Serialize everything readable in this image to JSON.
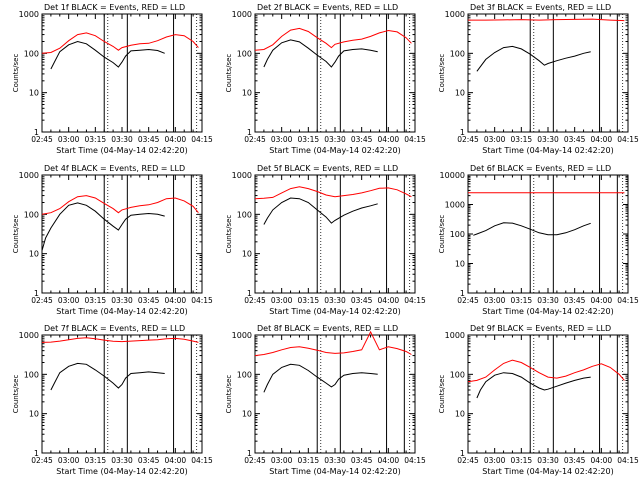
{
  "colors": {
    "events": "#000000",
    "lld": "#ff0000",
    "axis": "#000000"
  },
  "chart_data": [
    {
      "type": "line",
      "title": "Det 1f BLACK = Events, RED = LLD",
      "xlabel": "Start Time (04-May-14 02:42:20)",
      "ylabel": "Counts/sec",
      "yscale": "log",
      "ylim": [
        1,
        1000
      ],
      "x_ticks": [
        "02:45",
        "03:00",
        "03:15",
        "03:30",
        "03:45",
        "04:00",
        "04:15"
      ],
      "y_ticks": [
        "1",
        "10",
        "100",
        "1000"
      ],
      "xlim_min": [
        165,
        255
      ],
      "marker_lines_min": [
        35,
        48,
        74,
        84
      ],
      "series": [
        {
          "x_min": [
            170,
            172,
            175,
            180,
            185,
            190,
            195,
            200,
            205,
            208,
            210,
            212,
            215,
            220,
            225,
            230,
            234
          ],
          "values": [
            40,
            60,
            110,
            165,
            200,
            175,
            120,
            80,
            58,
            45,
            60,
            85,
            115,
            120,
            125,
            118,
            100
          ]
        },
        {
          "x_min": [
            165,
            170,
            175,
            180,
            185,
            190,
            195,
            200,
            205,
            208,
            210,
            215,
            220,
            225,
            230,
            235,
            240,
            245,
            250,
            253
          ],
          "values": [
            100,
            105,
            135,
            210,
            300,
            330,
            280,
            200,
            150,
            120,
            140,
            160,
            175,
            180,
            210,
            260,
            300,
            280,
            200,
            140
          ]
        }
      ]
    },
    {
      "type": "line",
      "title": "Det 2f BLACK = Events, RED = LLD",
      "xlabel": "Start Time (04-May-14 02:42:20)",
      "ylabel": "Counts/sec",
      "yscale": "log",
      "ylim": [
        1,
        1000
      ],
      "x_ticks": [
        "02:45",
        "03:00",
        "03:15",
        "03:30",
        "03:45",
        "04:00",
        "04:15"
      ],
      "y_ticks": [
        "1",
        "10",
        "100",
        "1000"
      ],
      "xlim_min": [
        165,
        255
      ],
      "marker_lines_min": [
        35,
        48,
        74,
        84
      ],
      "series": [
        {
          "x_min": [
            170,
            172,
            175,
            180,
            185,
            190,
            195,
            200,
            205,
            208,
            210,
            212,
            215,
            220,
            225,
            230,
            234
          ],
          "values": [
            45,
            70,
            120,
            185,
            220,
            195,
            135,
            90,
            62,
            45,
            60,
            85,
            115,
            125,
            130,
            120,
            110
          ]
        },
        {
          "x_min": [
            165,
            170,
            175,
            180,
            185,
            190,
            195,
            200,
            205,
            208,
            210,
            215,
            220,
            225,
            230,
            235,
            240,
            245,
            250,
            253
          ],
          "values": [
            120,
            125,
            165,
            270,
            390,
            430,
            360,
            250,
            180,
            140,
            170,
            195,
            215,
            230,
            270,
            330,
            380,
            350,
            250,
            180
          ]
        }
      ]
    },
    {
      "type": "line",
      "title": "Det 3f BLACK = Events, RED = LLD",
      "xlabel": "Start Time (04-May-14 02:42:20)",
      "ylabel": "Counts/sec",
      "yscale": "log",
      "ylim": [
        1,
        1000
      ],
      "x_ticks": [
        "02:45",
        "03:00",
        "03:15",
        "03:30",
        "03:45",
        "04:00",
        "04:15"
      ],
      "y_ticks": [
        "1",
        "10",
        "100",
        "1000"
      ],
      "xlim_min": [
        165,
        255
      ],
      "marker_lines_min": [
        35,
        48,
        74,
        84
      ],
      "series": [
        {
          "x_min": [
            170,
            175,
            180,
            185,
            190,
            195,
            200,
            205,
            208,
            210,
            215,
            220,
            225,
            230,
            234
          ],
          "values": [
            35,
            70,
            105,
            140,
            150,
            130,
            95,
            65,
            50,
            55,
            65,
            75,
            85,
            100,
            110
          ]
        },
        {
          "x_min": [
            165,
            175,
            185,
            195,
            205,
            215,
            225,
            235,
            245,
            253
          ],
          "values": [
            700,
            700,
            710,
            720,
            700,
            720,
            730,
            740,
            700,
            680
          ]
        }
      ]
    },
    {
      "type": "line",
      "title": "Det 4f BLACK = Events, RED = LLD",
      "xlabel": "Start Time (04-May-14 02:42:20)",
      "ylabel": "Counts/sec",
      "yscale": "log",
      "ylim": [
        1,
        1000
      ],
      "x_ticks": [
        "02:45",
        "03:00",
        "03:15",
        "03:30",
        "03:45",
        "04:00",
        "04:15"
      ],
      "y_ticks": [
        "1",
        "10",
        "100",
        "1000"
      ],
      "xlim_min": [
        165,
        255
      ],
      "marker_lines_min": [
        35,
        48,
        74,
        84
      ],
      "series": [
        {
          "x_min": [
            165,
            167,
            170,
            175,
            180,
            185,
            190,
            195,
            200,
            205,
            208,
            210,
            212,
            215,
            220,
            225,
            230,
            234
          ],
          "values": [
            12,
            25,
            45,
            100,
            170,
            195,
            170,
            120,
            75,
            50,
            40,
            55,
            75,
            95,
            100,
            105,
            100,
            90
          ]
        },
        {
          "x_min": [
            165,
            170,
            175,
            180,
            185,
            190,
            195,
            200,
            205,
            208,
            210,
            215,
            220,
            225,
            230,
            235,
            240,
            245,
            250,
            253
          ],
          "values": [
            100,
            110,
            140,
            210,
            280,
            300,
            260,
            190,
            140,
            110,
            130,
            150,
            165,
            175,
            200,
            250,
            260,
            220,
            160,
            110
          ]
        }
      ]
    },
    {
      "type": "line",
      "title": "Det 5f BLACK = Events, RED = LLD",
      "xlabel": "Start Time (04-May-14 02:42:20)",
      "ylabel": "Counts/sec",
      "yscale": "log",
      "ylim": [
        1,
        1000
      ],
      "x_ticks": [
        "02:45",
        "03:00",
        "03:15",
        "03:30",
        "03:45",
        "04:00",
        "04:15"
      ],
      "y_ticks": [
        "1",
        "10",
        "100",
        "1000"
      ],
      "xlim_min": [
        165,
        255
      ],
      "marker_lines_min": [
        35,
        48,
        74,
        84
      ],
      "series": [
        {
          "x_min": [
            170,
            172,
            175,
            180,
            185,
            190,
            195,
            200,
            205,
            208,
            210,
            215,
            220,
            225,
            230,
            234
          ],
          "values": [
            55,
            80,
            130,
            200,
            260,
            250,
            200,
            130,
            85,
            60,
            70,
            95,
            120,
            145,
            165,
            185
          ]
        },
        {
          "x_min": [
            165,
            170,
            175,
            180,
            185,
            190,
            195,
            200,
            205,
            210,
            215,
            220,
            225,
            230,
            235,
            240,
            245,
            250,
            253
          ],
          "values": [
            250,
            255,
            270,
            350,
            450,
            500,
            450,
            380,
            310,
            280,
            300,
            320,
            350,
            400,
            460,
            470,
            420,
            330,
            280
          ]
        }
      ]
    },
    {
      "type": "line",
      "title": "Det 6f BLACK = Events, RED = LLD",
      "xlabel": "Start Time (04-May-14 02:42:20)",
      "ylabel": "Counts/sec",
      "yscale": "log",
      "ylim": [
        1,
        10000
      ],
      "x_ticks": [
        "02:45",
        "03:00",
        "03:15",
        "03:30",
        "03:45",
        "04:00",
        "04:15"
      ],
      "y_ticks": [
        "1",
        "10",
        "100",
        "1000",
        "10000"
      ],
      "xlim_min": [
        165,
        255
      ],
      "marker_lines_min": [
        35,
        48,
        74,
        84
      ],
      "series": [
        {
          "x_min": [
            168,
            170,
            175,
            180,
            185,
            190,
            195,
            200,
            205,
            210,
            215,
            220,
            225,
            230,
            234
          ],
          "values": [
            90,
            100,
            130,
            190,
            240,
            235,
            190,
            145,
            110,
            95,
            95,
            110,
            140,
            190,
            230
          ]
        },
        {
          "x_min": [
            165,
            253
          ],
          "values": [
            2500,
            2500
          ]
        }
      ]
    },
    {
      "type": "line",
      "title": "Det 7f BLACK = Events, RED = LLD",
      "xlabel": "Start Time (04-May-14 02:42:20)",
      "ylabel": "Counts/sec",
      "yscale": "log",
      "ylim": [
        1,
        1000
      ],
      "x_ticks": [
        "02:45",
        "03:00",
        "03:15",
        "03:30",
        "03:45",
        "04:00",
        "04:15"
      ],
      "y_ticks": [
        "1",
        "10",
        "100",
        "1000"
      ],
      "xlim_min": [
        165,
        255
      ],
      "marker_lines_min": [
        35,
        48,
        74,
        84
      ],
      "series": [
        {
          "x_min": [
            170,
            172,
            175,
            180,
            185,
            190,
            195,
            200,
            205,
            208,
            210,
            212,
            215,
            220,
            225,
            230,
            234
          ],
          "values": [
            40,
            60,
            110,
            160,
            190,
            180,
            130,
            90,
            60,
            45,
            55,
            80,
            105,
            110,
            115,
            110,
            105
          ]
        },
        {
          "x_min": [
            165,
            170,
            175,
            180,
            185,
            190,
            195,
            200,
            205,
            210,
            215,
            220,
            225,
            230,
            235,
            240,
            245,
            250,
            253
          ],
          "values": [
            650,
            660,
            700,
            760,
            820,
            850,
            800,
            740,
            690,
            680,
            700,
            720,
            740,
            760,
            800,
            820,
            780,
            700,
            650
          ]
        }
      ]
    },
    {
      "type": "line",
      "title": "Det 8f BLACK = Events, RED = LLD",
      "xlabel": "Start Time (04-May-14 02:42:20)",
      "ylabel": "Counts/sec",
      "yscale": "log",
      "ylim": [
        1,
        1000
      ],
      "x_ticks": [
        "02:45",
        "03:00",
        "03:15",
        "03:30",
        "03:45",
        "04:00",
        "04:15"
      ],
      "y_ticks": [
        "1",
        "10",
        "100",
        "1000"
      ],
      "xlim_min": [
        165,
        255
      ],
      "marker_lines_min": [
        35,
        48,
        74,
        84
      ],
      "series": [
        {
          "x_min": [
            170,
            172,
            175,
            180,
            185,
            190,
            195,
            200,
            205,
            208,
            210,
            212,
            215,
            220,
            225,
            230,
            234
          ],
          "values": [
            35,
            55,
            100,
            150,
            180,
            170,
            125,
            85,
            60,
            48,
            55,
            75,
            95,
            105,
            110,
            105,
            100
          ]
        },
        {
          "x_min": [
            165,
            170,
            175,
            180,
            185,
            190,
            195,
            200,
            205,
            210,
            215,
            220,
            225,
            230,
            235,
            240,
            245,
            250,
            253
          ],
          "values": [
            300,
            320,
            360,
            420,
            480,
            500,
            460,
            410,
            360,
            340,
            350,
            380,
            420,
            1200,
            420,
            500,
            450,
            380,
            320
          ]
        }
      ]
    },
    {
      "type": "line",
      "title": "Det 9f BLACK = Events, RED = LLD",
      "xlabel": "Start Time (04-May-14 02:42:20)",
      "ylabel": "Counts/sec",
      "yscale": "log",
      "ylim": [
        1,
        1000
      ],
      "x_ticks": [
        "02:45",
        "03:00",
        "03:15",
        "03:30",
        "03:45",
        "04:00",
        "04:15"
      ],
      "y_ticks": [
        "1",
        "10",
        "100",
        "1000"
      ],
      "xlim_min": [
        165,
        255
      ],
      "marker_lines_min": [
        35,
        48,
        74,
        84
      ],
      "series": [
        {
          "x_min": [
            170,
            172,
            175,
            180,
            185,
            190,
            195,
            200,
            205,
            208,
            210,
            215,
            220,
            225,
            230,
            234
          ],
          "values": [
            25,
            40,
            65,
            95,
            110,
            105,
            85,
            60,
            45,
            40,
            42,
            50,
            60,
            70,
            80,
            85
          ]
        },
        {
          "x_min": [
            165,
            170,
            175,
            180,
            185,
            190,
            195,
            200,
            205,
            210,
            215,
            220,
            225,
            230,
            235,
            240,
            245,
            250,
            253
          ],
          "values": [
            65,
            70,
            85,
            130,
            190,
            230,
            200,
            150,
            110,
            85,
            80,
            90,
            110,
            130,
            160,
            185,
            150,
            100,
            70
          ]
        }
      ]
    }
  ]
}
